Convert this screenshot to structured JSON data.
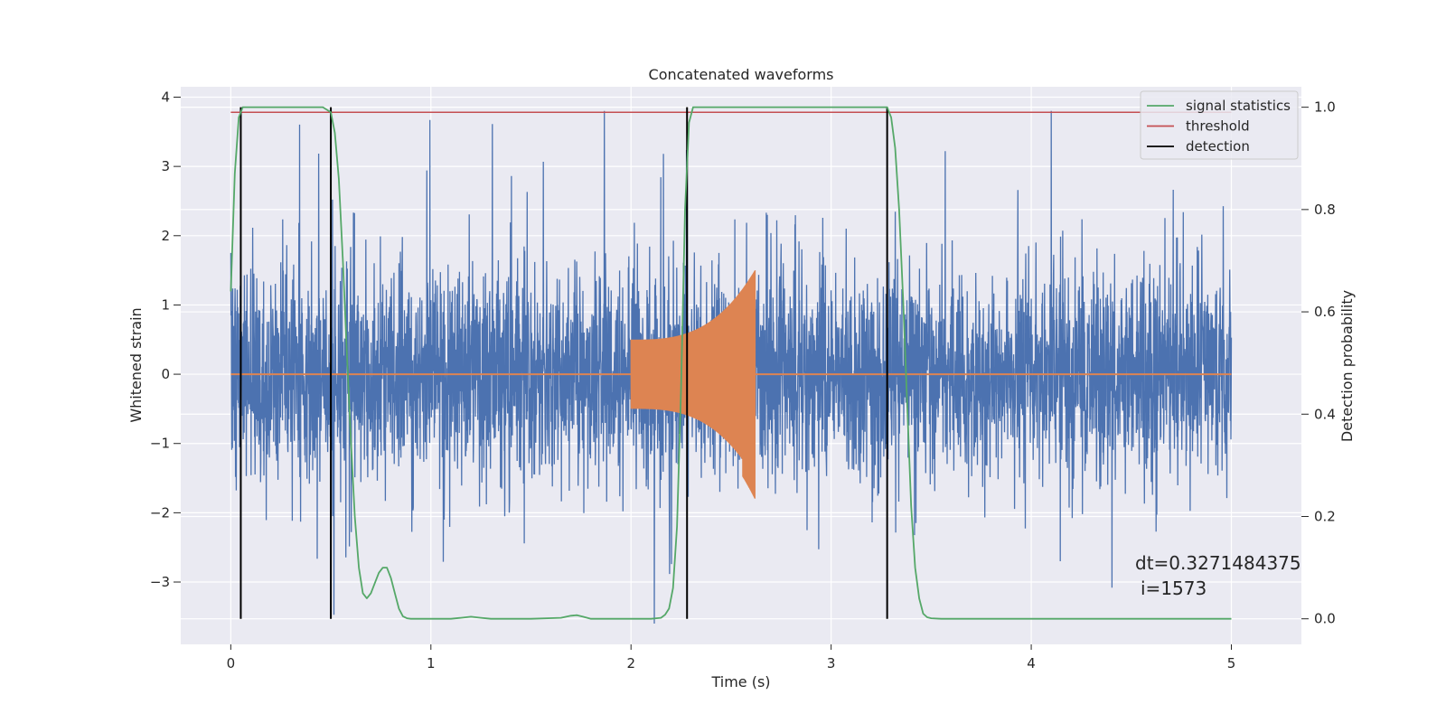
{
  "chart_data": {
    "type": "line",
    "title": "Concatenated waveforms",
    "xlabel": "Time (s)",
    "ylabel": "Whitened strain",
    "ylabel_right": "Detection probability",
    "xlim": [
      -0.25,
      5.35
    ],
    "ylim": [
      -3.9,
      4.15
    ],
    "ylim_right": [
      -0.05,
      1.04
    ],
    "xticks": [
      0,
      1,
      2,
      3,
      4,
      5
    ],
    "yticks": [
      -3,
      -2,
      -1,
      0,
      1,
      2,
      3,
      4
    ],
    "yticks_right": [
      0.0,
      0.2,
      0.4,
      0.6,
      0.8,
      1.0
    ],
    "xtick_labels": [
      "0",
      "1",
      "2",
      "3",
      "4",
      "5"
    ],
    "ytick_labels": [
      "−3",
      "−2",
      "−1",
      "0",
      "1",
      "2",
      "3",
      "4"
    ],
    "ytick_right_labels": [
      "0.0",
      "0.2",
      "0.4",
      "0.6",
      "0.8",
      "1.0"
    ],
    "grid": true,
    "legend_position": "top-right",
    "colors": {
      "strain": "#4c72b0",
      "template": "#dd8452",
      "signal_statistics": "#55a868",
      "threshold": "#c44e52",
      "detection": "#000000",
      "background": "#eaeaf2",
      "grid": "#ffffff"
    },
    "series": [
      {
        "role": "strain",
        "axis": "left",
        "noise": {
          "x_range": [
            0,
            5
          ],
          "envelope_typical": 0.9,
          "peak_range": [
            -3.6,
            3.8
          ]
        }
      },
      {
        "role": "template",
        "axis": "left",
        "chirp": {
          "x_start": 2.0,
          "x_end": 2.62,
          "amplitude_start": 0.5,
          "amplitude_end": 1.5,
          "amplitude_min": -1.8
        },
        "baseline": 0
      },
      {
        "name": "signal statistics",
        "axis": "right",
        "x": [
          0,
          0.02,
          0.04,
          0.06,
          0.1,
          0.3,
          0.46,
          0.5,
          0.52,
          0.54,
          0.56,
          0.58,
          0.6,
          0.62,
          0.64,
          0.66,
          0.68,
          0.7,
          0.72,
          0.74,
          0.76,
          0.78,
          0.8,
          0.82,
          0.84,
          0.86,
          0.88,
          0.9,
          1.0,
          1.1,
          1.15,
          1.2,
          1.25,
          1.3,
          1.5,
          1.65,
          1.7,
          1.73,
          1.76,
          1.8,
          1.9,
          2.0,
          2.1,
          2.15,
          2.17,
          2.19,
          2.21,
          2.23,
          2.25,
          2.27,
          2.29,
          2.31,
          2.33,
          2.4,
          2.6,
          3.2,
          3.28,
          3.3,
          3.32,
          3.34,
          3.36,
          3.38,
          3.4,
          3.42,
          3.44,
          3.46,
          3.48,
          3.5,
          3.55,
          3.6,
          4.0,
          4.5,
          5.0
        ],
        "y": [
          0.64,
          0.87,
          0.98,
          1.0,
          1.0,
          1.0,
          1.0,
          0.99,
          0.95,
          0.86,
          0.7,
          0.52,
          0.35,
          0.2,
          0.1,
          0.05,
          0.04,
          0.05,
          0.07,
          0.09,
          0.1,
          0.1,
          0.08,
          0.05,
          0.02,
          0.005,
          0.001,
          0.0,
          0.0,
          0.0,
          0.002,
          0.004,
          0.002,
          0.0,
          0.0,
          0.002,
          0.006,
          0.007,
          0.004,
          0.0,
          0.0,
          0.0,
          0.0,
          0.002,
          0.008,
          0.02,
          0.06,
          0.18,
          0.45,
          0.8,
          0.97,
          1.0,
          1.0,
          1.0,
          1.0,
          1.0,
          1.0,
          0.98,
          0.92,
          0.8,
          0.62,
          0.42,
          0.22,
          0.1,
          0.04,
          0.01,
          0.003,
          0.001,
          0.0,
          0.0,
          0.0,
          0.0,
          0.0
        ]
      },
      {
        "name": "threshold",
        "axis": "right",
        "x": [
          0,
          5
        ],
        "y": [
          0.99,
          0.99
        ]
      },
      {
        "name": "detection",
        "axis": "right",
        "x": [
          0.05,
          0.5,
          2.28,
          3.28
        ],
        "y_range": [
          0.0,
          1.0
        ]
      }
    ],
    "annotations": [
      "dt=0.3271484375",
      "i=1573"
    ]
  }
}
